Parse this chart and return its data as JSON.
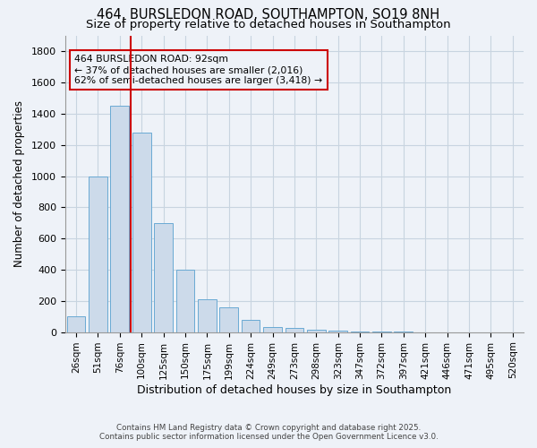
{
  "title_line1": "464, BURSLEDON ROAD, SOUTHAMPTON, SO19 8NH",
  "title_line2": "Size of property relative to detached houses in Southampton",
  "xlabel": "Distribution of detached houses by size in Southampton",
  "ylabel": "Number of detached properties",
  "categories": [
    "26sqm",
    "51sqm",
    "76sqm",
    "100sqm",
    "125sqm",
    "150sqm",
    "175sqm",
    "199sqm",
    "224sqm",
    "249sqm",
    "273sqm",
    "298sqm",
    "323sqm",
    "347sqm",
    "372sqm",
    "397sqm",
    "421sqm",
    "446sqm",
    "471sqm",
    "495sqm",
    "520sqm"
  ],
  "values": [
    100,
    1000,
    1450,
    1280,
    700,
    400,
    210,
    160,
    80,
    30,
    25,
    15,
    8,
    5,
    3,
    2,
    1,
    1,
    0,
    0,
    0
  ],
  "bar_color": "#ccdaea",
  "bar_edge_color": "#6aaad4",
  "grid_color": "#c8d4e0",
  "annotation_box_color": "#cc0000",
  "property_line_color": "#cc0000",
  "property_label": "464 BURSLEDON ROAD: 92sqm",
  "annotation_line2": "← 37% of detached houses are smaller (2,016)",
  "annotation_line3": "62% of semi-detached houses are larger (3,418) →",
  "ylim": [
    0,
    1900
  ],
  "yticks": [
    0,
    200,
    400,
    600,
    800,
    1000,
    1200,
    1400,
    1600,
    1800
  ],
  "footnote_line1": "Contains HM Land Registry data © Crown copyright and database right 2025.",
  "footnote_line2": "Contains public sector information licensed under the Open Government Licence v3.0.",
  "background_color": "#eef2f8",
  "title_fontsize": 10.5,
  "subtitle_fontsize": 9.5
}
